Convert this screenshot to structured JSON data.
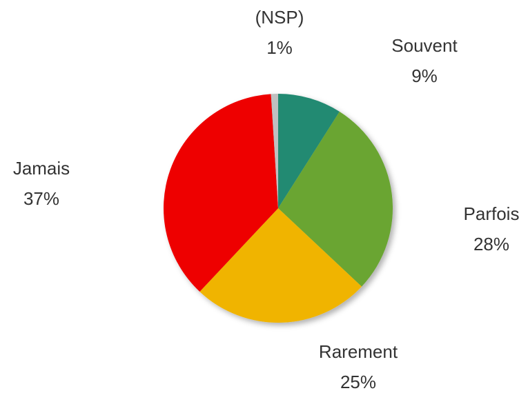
{
  "chart_data": {
    "type": "pie",
    "categories": [
      "Souvent",
      "Parfois",
      "Rarement",
      "Jamais",
      "(NSP)"
    ],
    "values": [
      9,
      28,
      25,
      37,
      1
    ],
    "value_labels": [
      "9%",
      "28%",
      "25%",
      "37%",
      "1%"
    ],
    "colors": [
      "#218a72",
      "#6aa531",
      "#f0b400",
      "#ee0000",
      "#c0c0c0"
    ]
  }
}
